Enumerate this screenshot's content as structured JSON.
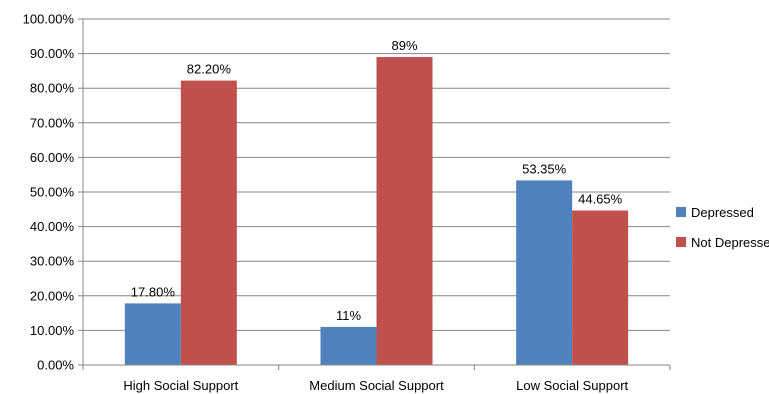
{
  "chart_data": {
    "type": "bar",
    "categories": [
      "High Social Support",
      "Medium Social Support",
      "Low Social Support"
    ],
    "series": [
      {
        "name": "Depressed",
        "values": [
          17.8,
          11,
          53.35
        ],
        "labels": [
          "17.80%",
          "11%",
          "53.35%"
        ],
        "color": "#4f81bd"
      },
      {
        "name": "Not Depressed",
        "values": [
          82.2,
          89,
          44.65
        ],
        "labels": [
          "82.20%",
          "89%",
          "44.65%"
        ],
        "color": "#c0504d"
      }
    ],
    "ylim": [
      0,
      100
    ],
    "yticks": [
      0,
      10,
      20,
      30,
      40,
      50,
      60,
      70,
      80,
      90,
      100
    ],
    "ytick_labels": [
      "0.00%",
      "10.00%",
      "20.00%",
      "30.00%",
      "40.00%",
      "50.00%",
      "60.00%",
      "70.00%",
      "80.00%",
      "90.00%",
      "100.00%"
    ],
    "grid": true,
    "legend_position": "right",
    "title": "",
    "xlabel": "",
    "ylabel": ""
  }
}
